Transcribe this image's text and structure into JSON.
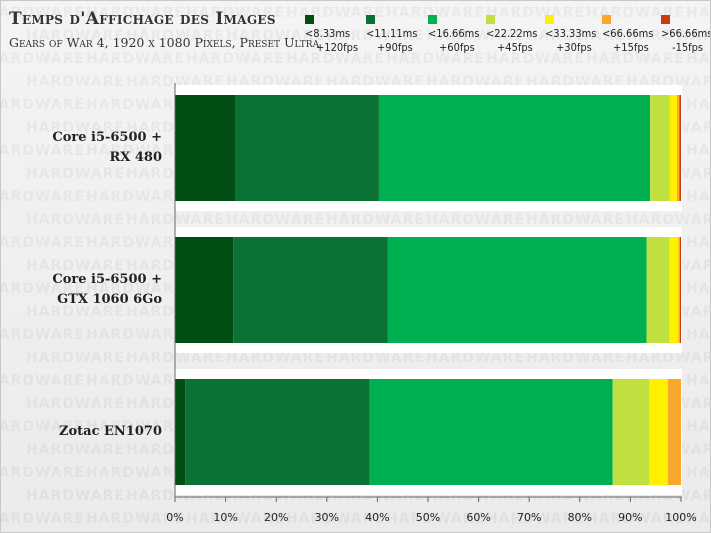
{
  "title": "Temps d'Affichage des Images",
  "subtitle": "Gears of War 4, 1920 x 1080 Pixels, Preset Ultra",
  "watermark": "HARDWARE",
  "legend": [
    {
      "ms": "<8.33ms",
      "fps": "+120fps",
      "color": "#004e14"
    },
    {
      "ms": "<11.11ms",
      "fps": "+90fps",
      "color": "#0b7135"
    },
    {
      "ms": "<16.66ms",
      "fps": "+60fps",
      "color": "#00b050"
    },
    {
      "ms": "<22.22ms",
      "fps": "+45fps",
      "color": "#c0e040"
    },
    {
      "ms": "<33.33ms",
      "fps": "+30fps",
      "color": "#fff000"
    },
    {
      "ms": "<66.66ms",
      "fps": "+15fps",
      "color": "#f8a82a"
    },
    {
      "ms": ">66.66ms",
      "fps": "-15fps",
      "color": "#c83c10"
    }
  ],
  "chart_data": {
    "type": "bar",
    "orientation": "horizontal",
    "stacked": true,
    "percent": true,
    "categories": [
      [
        "Core i5-6500 +",
        "RX 480"
      ],
      [
        "Core i5-6500 +",
        "GTX 1060 6Go"
      ],
      [
        "Zotac EN1070"
      ]
    ],
    "series": [
      {
        "name": "<8.33ms +120fps",
        "values": [
          12,
          11.5,
          2
        ]
      },
      {
        "name": "<11.11ms +90fps",
        "values": [
          28.3,
          30.5,
          36.5
        ]
      },
      {
        "name": "<16.66ms +60fps",
        "values": [
          53.6,
          51.2,
          48
        ]
      },
      {
        "name": "<22.22ms +45fps",
        "values": [
          3.9,
          4.5,
          7.3
        ]
      },
      {
        "name": "<33.33ms +30fps",
        "values": [
          1.4,
          1.8,
          3.6
        ]
      },
      {
        "name": "<66.66ms +15fps",
        "values": [
          0.5,
          0.3,
          2.6
        ]
      },
      {
        "name": ">66.66ms -15fps",
        "values": [
          0.3,
          0.2,
          0
        ]
      }
    ],
    "xlim": [
      0,
      100
    ],
    "xticks": [
      "0%",
      "10%",
      "20%",
      "30%",
      "40%",
      "50%",
      "60%",
      "70%",
      "80%",
      "90%",
      "100%"
    ],
    "grid": false,
    "legend_position": "top-right"
  }
}
